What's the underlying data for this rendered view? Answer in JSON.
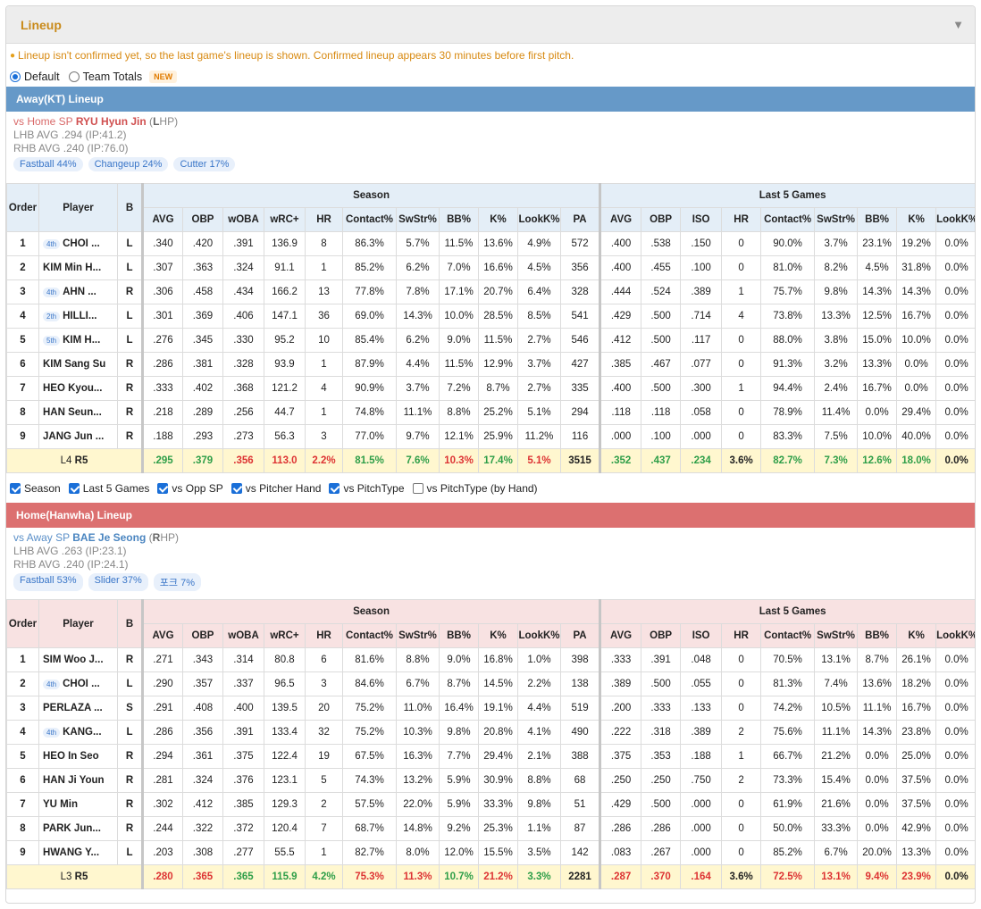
{
  "panel": {
    "title": "Lineup",
    "notice": "Lineup isn't confirmed yet, so the last game's lineup is shown. Confirmed lineup appears 30 minutes before first pitch.",
    "radio_default": "Default",
    "radio_team": "Team Totals",
    "new_badge": "NEW"
  },
  "headers": {
    "order": "Order",
    "player": "Player",
    "b": "B",
    "season": "Season",
    "last5": "Last 5 Games",
    "season_cols": [
      "AVG",
      "OBP",
      "wOBA",
      "wRC+",
      "HR",
      "Contact%",
      "SwStr%",
      "BB%",
      "K%",
      "LookK%",
      "PA"
    ],
    "last5_cols": [
      "AVG",
      "OBP",
      "ISO",
      "HR",
      "Contact%",
      "SwStr%",
      "BB%",
      "K%",
      "LookK%"
    ]
  },
  "away": {
    "bar": "Away(KT) Lineup",
    "vs_prefix": "vs Home SP ",
    "sp_name": "RYU Hyun Jin",
    "hand_open": " (",
    "hand_letter": "L",
    "hand_rest": "HP)",
    "lhb": "LHB AVG .294 (IP:41.2)",
    "rhb": "RHB AVG .240 (IP:76.0)",
    "pitches": [
      "Fastball 44%",
      "Changeup 24%",
      "Cutter 17%"
    ],
    "rows": [
      {
        "o": "1",
        "badge": "4th",
        "p": "CHOI ...",
        "b": "L",
        "s": [
          ".340",
          ".420",
          ".391",
          "136.9",
          "8",
          "86.3%",
          "5.7%",
          "11.5%",
          "13.6%",
          "4.9%",
          "572"
        ],
        "l": [
          ".400",
          ".538",
          ".150",
          "0",
          "90.0%",
          "3.7%",
          "23.1%",
          "19.2%",
          "0.0%"
        ]
      },
      {
        "o": "2",
        "badge": "",
        "p": "KIM Min H...",
        "b": "L",
        "s": [
          ".307",
          ".363",
          ".324",
          "91.1",
          "1",
          "85.2%",
          "6.2%",
          "7.0%",
          "16.6%",
          "4.5%",
          "356"
        ],
        "l": [
          ".400",
          ".455",
          ".100",
          "0",
          "81.0%",
          "8.2%",
          "4.5%",
          "31.8%",
          "0.0%"
        ]
      },
      {
        "o": "3",
        "badge": "4th",
        "p": "AHN ...",
        "b": "R",
        "s": [
          ".306",
          ".458",
          ".434",
          "166.2",
          "13",
          "77.8%",
          "7.8%",
          "17.1%",
          "20.7%",
          "6.4%",
          "328"
        ],
        "l": [
          ".444",
          ".524",
          ".389",
          "1",
          "75.7%",
          "9.8%",
          "14.3%",
          "14.3%",
          "0.0%"
        ]
      },
      {
        "o": "4",
        "badge": "2th",
        "p": "HILLI...",
        "b": "L",
        "s": [
          ".301",
          ".369",
          ".406",
          "147.1",
          "36",
          "69.0%",
          "14.3%",
          "10.0%",
          "28.5%",
          "8.5%",
          "541"
        ],
        "l": [
          ".429",
          ".500",
          ".714",
          "4",
          "73.8%",
          "13.3%",
          "12.5%",
          "16.7%",
          "0.0%"
        ]
      },
      {
        "o": "5",
        "badge": "5th",
        "p": "KIM H...",
        "b": "L",
        "s": [
          ".276",
          ".345",
          ".330",
          "95.2",
          "10",
          "85.4%",
          "6.2%",
          "9.0%",
          "11.5%",
          "2.7%",
          "546"
        ],
        "l": [
          ".412",
          ".500",
          ".117",
          "0",
          "88.0%",
          "3.8%",
          "15.0%",
          "10.0%",
          "0.0%"
        ]
      },
      {
        "o": "6",
        "badge": "",
        "p": "KIM Sang Su",
        "b": "R",
        "s": [
          ".286",
          ".381",
          ".328",
          "93.9",
          "1",
          "87.9%",
          "4.4%",
          "11.5%",
          "12.9%",
          "3.7%",
          "427"
        ],
        "l": [
          ".385",
          ".467",
          ".077",
          "0",
          "91.3%",
          "3.2%",
          "13.3%",
          "0.0%",
          "0.0%"
        ]
      },
      {
        "o": "7",
        "badge": "",
        "p": "HEO Kyou...",
        "b": "R",
        "s": [
          ".333",
          ".402",
          ".368",
          "121.2",
          "4",
          "90.9%",
          "3.7%",
          "7.2%",
          "8.7%",
          "2.7%",
          "335"
        ],
        "l": [
          ".400",
          ".500",
          ".300",
          "1",
          "94.4%",
          "2.4%",
          "16.7%",
          "0.0%",
          "0.0%"
        ]
      },
      {
        "o": "8",
        "badge": "",
        "p": "HAN Seun...",
        "b": "R",
        "s": [
          ".218",
          ".289",
          ".256",
          "44.7",
          "1",
          "74.8%",
          "11.1%",
          "8.8%",
          "25.2%",
          "5.1%",
          "294"
        ],
        "l": [
          ".118",
          ".118",
          ".058",
          "0",
          "78.9%",
          "11.4%",
          "0.0%",
          "29.4%",
          "0.0%"
        ]
      },
      {
        "o": "9",
        "badge": "",
        "p": "JANG Jun ...",
        "b": "R",
        "s": [
          ".188",
          ".293",
          ".273",
          "56.3",
          "3",
          "77.0%",
          "9.7%",
          "12.1%",
          "25.9%",
          "11.2%",
          "116"
        ],
        "l": [
          ".000",
          ".100",
          ".000",
          "0",
          "83.3%",
          "7.5%",
          "10.0%",
          "40.0%",
          "0.0%"
        ]
      }
    ],
    "tot_label_l": "L4",
    "tot_label_r": "R5",
    "tot_s": [
      ".295",
      ".379",
      ".356",
      "113.0",
      "2.2%",
      "81.5%",
      "7.6%",
      "10.3%",
      "17.4%",
      "5.1%",
      "3515"
    ],
    "tot_s_c": [
      "g",
      "g",
      "rd",
      "rd",
      "rd",
      "g",
      "g",
      "rd",
      "g",
      "rd",
      "k"
    ],
    "tot_l": [
      ".352",
      ".437",
      ".234",
      "3.6%",
      "82.7%",
      "7.3%",
      "12.6%",
      "18.0%",
      "0.0%"
    ],
    "tot_l_c": [
      "g",
      "g",
      "g",
      "k",
      "g",
      "g",
      "g",
      "g",
      "k"
    ]
  },
  "checks": [
    "Season",
    "Last 5 Games",
    "vs Opp SP",
    "vs Pitcher Hand",
    "vs PitchType",
    "vs PitchType (by Hand)"
  ],
  "home": {
    "bar": "Home(Hanwha) Lineup",
    "vs_prefix": "vs Away SP ",
    "sp_name": "BAE Je Seong",
    "hand_open": " (",
    "hand_letter": "R",
    "hand_rest": "HP)",
    "lhb": "LHB AVG .263 (IP:23.1)",
    "rhb": "RHB AVG .240 (IP:24.1)",
    "pitches": [
      "Fastball 53%",
      "Slider 37%",
      "포크 7%"
    ],
    "rows": [
      {
        "o": "1",
        "badge": "",
        "p": "SIM Woo J...",
        "b": "R",
        "s": [
          ".271",
          ".343",
          ".314",
          "80.8",
          "6",
          "81.6%",
          "8.8%",
          "9.0%",
          "16.8%",
          "1.0%",
          "398"
        ],
        "l": [
          ".333",
          ".391",
          ".048",
          "0",
          "70.5%",
          "13.1%",
          "8.7%",
          "26.1%",
          "0.0%"
        ]
      },
      {
        "o": "2",
        "badge": "4th",
        "p": "CHOI ...",
        "b": "L",
        "s": [
          ".290",
          ".357",
          ".337",
          "96.5",
          "3",
          "84.6%",
          "6.7%",
          "8.7%",
          "14.5%",
          "2.2%",
          "138"
        ],
        "l": [
          ".389",
          ".500",
          ".055",
          "0",
          "81.3%",
          "7.4%",
          "13.6%",
          "18.2%",
          "0.0%"
        ]
      },
      {
        "o": "3",
        "badge": "",
        "p": "PERLAZA ...",
        "b": "S",
        "s": [
          ".291",
          ".408",
          ".400",
          "139.5",
          "20",
          "75.2%",
          "11.0%",
          "16.4%",
          "19.1%",
          "4.4%",
          "519"
        ],
        "l": [
          ".200",
          ".333",
          ".133",
          "0",
          "74.2%",
          "10.5%",
          "11.1%",
          "16.7%",
          "0.0%"
        ]
      },
      {
        "o": "4",
        "badge": "4th",
        "p": "KANG...",
        "b": "L",
        "s": [
          ".286",
          ".356",
          ".391",
          "133.4",
          "32",
          "75.2%",
          "10.3%",
          "9.8%",
          "20.8%",
          "4.1%",
          "490"
        ],
        "l": [
          ".222",
          ".318",
          ".389",
          "2",
          "75.6%",
          "11.1%",
          "14.3%",
          "23.8%",
          "0.0%"
        ]
      },
      {
        "o": "5",
        "badge": "",
        "p": "HEO In Seo",
        "b": "R",
        "s": [
          ".294",
          ".361",
          ".375",
          "122.4",
          "19",
          "67.5%",
          "16.3%",
          "7.7%",
          "29.4%",
          "2.1%",
          "388"
        ],
        "l": [
          ".375",
          ".353",
          ".188",
          "1",
          "66.7%",
          "21.2%",
          "0.0%",
          "25.0%",
          "0.0%"
        ]
      },
      {
        "o": "6",
        "badge": "",
        "p": "HAN Ji Youn",
        "b": "R",
        "s": [
          ".281",
          ".324",
          ".376",
          "123.1",
          "5",
          "74.3%",
          "13.2%",
          "5.9%",
          "30.9%",
          "8.8%",
          "68"
        ],
        "l": [
          ".250",
          ".250",
          ".750",
          "2",
          "73.3%",
          "15.4%",
          "0.0%",
          "37.5%",
          "0.0%"
        ]
      },
      {
        "o": "7",
        "badge": "",
        "p": "YU Min",
        "b": "R",
        "s": [
          ".302",
          ".412",
          ".385",
          "129.3",
          "2",
          "57.5%",
          "22.0%",
          "5.9%",
          "33.3%",
          "9.8%",
          "51"
        ],
        "l": [
          ".429",
          ".500",
          ".000",
          "0",
          "61.9%",
          "21.6%",
          "0.0%",
          "37.5%",
          "0.0%"
        ]
      },
      {
        "o": "8",
        "badge": "",
        "p": "PARK Jun...",
        "b": "R",
        "s": [
          ".244",
          ".322",
          ".372",
          "120.4",
          "7",
          "68.7%",
          "14.8%",
          "9.2%",
          "25.3%",
          "1.1%",
          "87"
        ],
        "l": [
          ".286",
          ".286",
          ".000",
          "0",
          "50.0%",
          "33.3%",
          "0.0%",
          "42.9%",
          "0.0%"
        ]
      },
      {
        "o": "9",
        "badge": "",
        "p": "HWANG Y...",
        "b": "L",
        "s": [
          ".203",
          ".308",
          ".277",
          "55.5",
          "1",
          "82.7%",
          "8.0%",
          "12.0%",
          "15.5%",
          "3.5%",
          "142"
        ],
        "l": [
          ".083",
          ".267",
          ".000",
          "0",
          "85.2%",
          "6.7%",
          "20.0%",
          "13.3%",
          "0.0%"
        ]
      }
    ],
    "tot_label_l": "L3",
    "tot_label_r": "R5",
    "tot_s": [
      ".280",
      ".365",
      ".365",
      "115.9",
      "4.2%",
      "75.3%",
      "11.3%",
      "10.7%",
      "21.2%",
      "3.3%",
      "2281"
    ],
    "tot_s_c": [
      "rd",
      "rd",
      "g",
      "g",
      "g",
      "rd",
      "rd",
      "g",
      "rd",
      "g",
      "k"
    ],
    "tot_l": [
      ".287",
      ".370",
      ".164",
      "3.6%",
      "72.5%",
      "13.1%",
      "9.4%",
      "23.9%",
      "0.0%"
    ],
    "tot_l_c": [
      "rd",
      "rd",
      "rd",
      "k",
      "rd",
      "rd",
      "rd",
      "rd",
      "k"
    ]
  }
}
